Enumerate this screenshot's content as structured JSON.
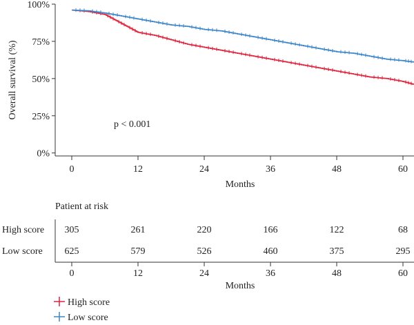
{
  "chart_data": {
    "type": "line",
    "subtype": "kaplan-meier",
    "xlabel": "Months",
    "ylabel": "Overall survival (%)",
    "x_ticks": [
      0,
      12,
      24,
      36,
      48,
      60
    ],
    "y_ticks": [
      "0%",
      "25%",
      "50%",
      "75%",
      "100%"
    ],
    "y_tick_values": [
      0,
      25,
      50,
      75,
      100
    ],
    "xlim": [
      -3,
      62
    ],
    "ylim": [
      -2,
      100
    ],
    "annotation": "p < 0.001",
    "series": [
      {
        "name": "High score",
        "color": "#e0213a",
        "points": [
          [
            0,
            96
          ],
          [
            3,
            95
          ],
          [
            6,
            93
          ],
          [
            8,
            89
          ],
          [
            10,
            85
          ],
          [
            12,
            81
          ],
          [
            15,
            79
          ],
          [
            18,
            76
          ],
          [
            21,
            73
          ],
          [
            24,
            71
          ],
          [
            27,
            69
          ],
          [
            30,
            67
          ],
          [
            33,
            65
          ],
          [
            36,
            63
          ],
          [
            39,
            61
          ],
          [
            42,
            59
          ],
          [
            45,
            57
          ],
          [
            48,
            55
          ],
          [
            51,
            53
          ],
          [
            54,
            51
          ],
          [
            57,
            50
          ],
          [
            60,
            48
          ],
          [
            62,
            46
          ]
        ]
      },
      {
        "name": "Low score",
        "color": "#3a85c9",
        "points": [
          [
            0,
            96
          ],
          [
            3,
            95.5
          ],
          [
            6,
            94
          ],
          [
            9,
            92
          ],
          [
            12,
            90
          ],
          [
            15,
            88
          ],
          [
            18,
            86
          ],
          [
            21,
            85
          ],
          [
            24,
            83
          ],
          [
            27,
            82
          ],
          [
            30,
            80
          ],
          [
            33,
            78
          ],
          [
            36,
            76
          ],
          [
            39,
            74
          ],
          [
            42,
            72
          ],
          [
            45,
            70
          ],
          [
            48,
            68
          ],
          [
            51,
            67
          ],
          [
            54,
            65
          ],
          [
            57,
            63
          ],
          [
            60,
            62
          ],
          [
            62,
            61
          ]
        ]
      }
    ]
  },
  "risk_table": {
    "title": "Patient at risk",
    "xlabel": "Months",
    "x_ticks": [
      0,
      12,
      24,
      36,
      48,
      60
    ],
    "rows": [
      {
        "label": "High score",
        "values": [
          305,
          261,
          220,
          166,
          122,
          68
        ]
      },
      {
        "label": "Low score",
        "values": [
          625,
          579,
          526,
          460,
          375,
          295
        ]
      }
    ]
  },
  "legend": [
    {
      "label": "High score",
      "color": "#e0213a"
    },
    {
      "label": "Low score",
      "color": "#3a85c9"
    }
  ]
}
